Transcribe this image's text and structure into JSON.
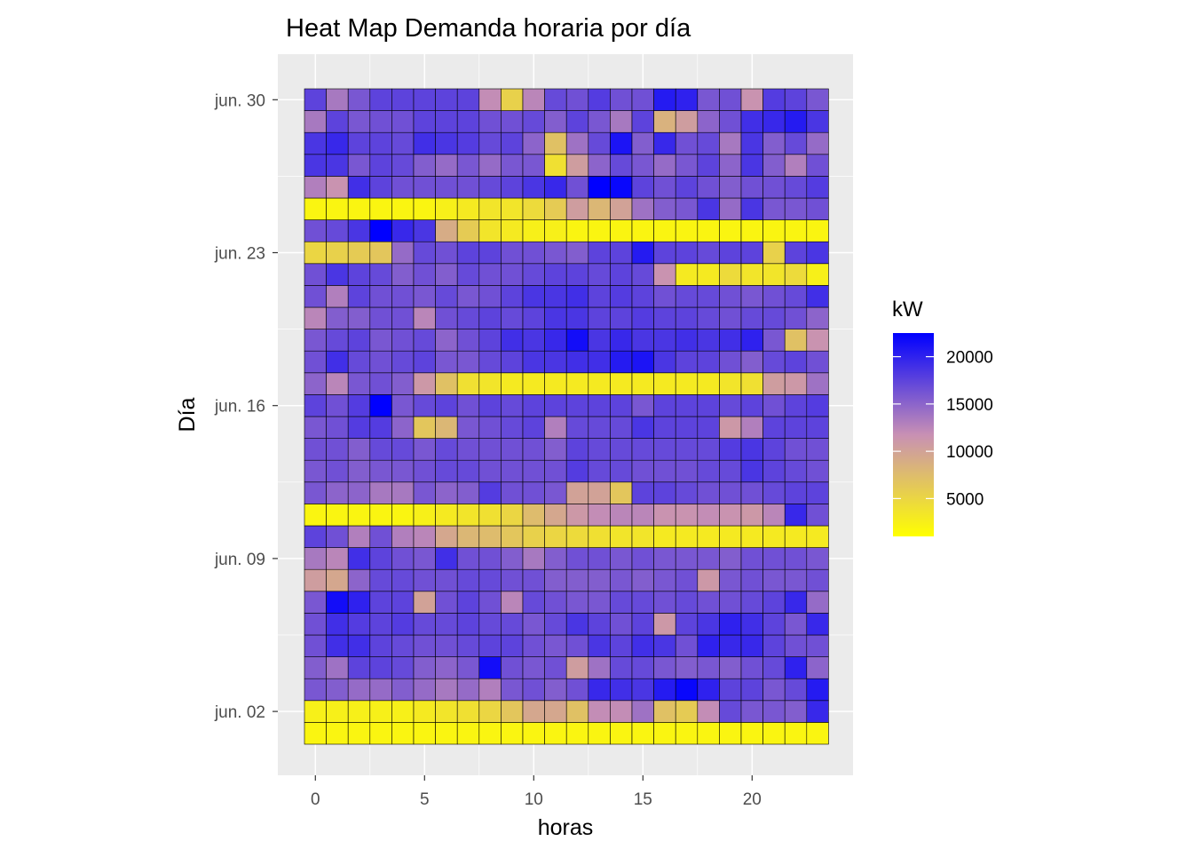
{
  "chart_data": {
    "type": "heatmap",
    "title": "Heat Map Demanda horaria por día",
    "xlabel": "horas",
    "ylabel": "Día",
    "x_ticks": [
      0,
      5,
      10,
      15,
      20
    ],
    "xlim": [
      -0.5,
      23.5
    ],
    "hours": [
      0,
      1,
      2,
      3,
      4,
      5,
      6,
      7,
      8,
      9,
      10,
      11,
      12,
      13,
      14,
      15,
      16,
      17,
      18,
      19,
      20,
      21,
      22,
      23
    ],
    "days": [
      "jun. 01",
      "jun. 02",
      "jun. 03",
      "jun. 04",
      "jun. 05",
      "jun. 06",
      "jun. 07",
      "jun. 08",
      "jun. 09",
      "jun. 10",
      "jun. 11",
      "jun. 12",
      "jun. 13",
      "jun. 14",
      "jun. 15",
      "jun. 16",
      "jun. 17",
      "jun. 18",
      "jun. 19",
      "jun. 20",
      "jun. 21",
      "jun. 22",
      "jun. 23",
      "jun. 24",
      "jun. 25",
      "jun. 26",
      "jun. 27",
      "jun. 28",
      "jun. 29",
      "jun. 30"
    ],
    "y_ticks": [
      "jun. 02",
      "jun. 09",
      "jun. 16",
      "jun. 23",
      "jun. 30"
    ],
    "grid": true,
    "legend": {
      "title": "kW",
      "position": "right",
      "breaks": [
        20000,
        15000,
        10000,
        5000
      ],
      "range": [
        1000,
        22500
      ],
      "colors": {
        "low": "#ffff00",
        "mid": "#c890b4",
        "high": "#0000ff"
      }
    },
    "values": [
      [
        2000,
        2000,
        2000,
        2000,
        2000,
        2000,
        2000,
        2000,
        2000,
        2000,
        2000,
        2000,
        2000,
        2000,
        2000,
        2000,
        2000,
        2000,
        2000,
        2000,
        2000,
        2000,
        2000,
        2000
      ],
      [
        2500,
        2500,
        2500,
        2500,
        2500,
        3000,
        3500,
        4000,
        5000,
        6500,
        9500,
        9500,
        7000,
        12000,
        12000,
        14000,
        7000,
        6000,
        12000,
        17000,
        16000,
        16000,
        15500,
        19500
      ],
      [
        16000,
        15500,
        14500,
        14500,
        15500,
        14500,
        13500,
        14500,
        13000,
        16000,
        16500,
        15500,
        16500,
        19500,
        19000,
        18500,
        20500,
        22000,
        20000,
        17500,
        17500,
        16000,
        17000,
        20500
      ],
      [
        15500,
        14000,
        17500,
        17500,
        17000,
        15500,
        15000,
        16000,
        21500,
        16500,
        16000,
        16500,
        10500,
        14000,
        17000,
        17000,
        16000,
        15500,
        16000,
        15500,
        16500,
        17000,
        20000,
        15000
      ],
      [
        16500,
        19000,
        19000,
        17500,
        17000,
        16500,
        16500,
        17000,
        17500,
        17500,
        16500,
        16000,
        16500,
        18500,
        17500,
        19000,
        18500,
        16500,
        20000,
        19500,
        19500,
        17500,
        16500,
        16500
      ],
      [
        16500,
        19000,
        18000,
        17500,
        18000,
        17000,
        17000,
        17500,
        17000,
        17000,
        16000,
        17000,
        18500,
        17500,
        16500,
        17500,
        11000,
        17500,
        18500,
        20000,
        19000,
        17500,
        16000,
        19500
      ],
      [
        16000,
        21500,
        20000,
        17500,
        17500,
        10000,
        16500,
        17500,
        16500,
        12500,
        17000,
        16500,
        16000,
        16000,
        17000,
        17000,
        16500,
        17000,
        16500,
        16500,
        17000,
        17500,
        19500,
        14500
      ],
      [
        10500,
        9500,
        15000,
        17000,
        17000,
        16500,
        16500,
        17000,
        17000,
        16500,
        16500,
        15500,
        15500,
        15500,
        16000,
        15500,
        16000,
        16500,
        11000,
        16000,
        16500,
        16000,
        16000,
        16500
      ],
      [
        13500,
        12500,
        19000,
        17500,
        16500,
        16000,
        19000,
        16500,
        16500,
        15500,
        13500,
        15500,
        16500,
        16500,
        16000,
        16500,
        16000,
        16000,
        16000,
        15500,
        16500,
        16500,
        16500,
        16000
      ],
      [
        17500,
        16500,
        13000,
        16500,
        13000,
        12500,
        9500,
        8000,
        7500,
        6500,
        5500,
        5000,
        4500,
        4000,
        3500,
        3500,
        3000,
        3000,
        3000,
        3000,
        3000,
        3000,
        3000,
        3000
      ],
      [
        2000,
        2000,
        2000,
        2000,
        2000,
        2500,
        3000,
        3500,
        4000,
        5000,
        7500,
        9500,
        11000,
        12000,
        12500,
        12500,
        11500,
        11500,
        12000,
        11500,
        11000,
        12500,
        19500,
        16500
      ],
      [
        16000,
        15000,
        15000,
        13500,
        13500,
        16000,
        15000,
        15500,
        18000,
        16500,
        16500,
        16000,
        10000,
        10000,
        6500,
        17500,
        17500,
        17000,
        16500,
        16500,
        16500,
        17000,
        17500,
        17500
      ],
      [
        16000,
        16500,
        15500,
        16000,
        16000,
        16500,
        17000,
        17000,
        16500,
        16500,
        16500,
        16500,
        18000,
        17000,
        17000,
        16500,
        16500,
        16500,
        17000,
        17000,
        18500,
        17500,
        17000,
        16500
      ],
      [
        16500,
        16500,
        15500,
        17000,
        17000,
        16000,
        17000,
        16500,
        16500,
        16500,
        16500,
        15500,
        17500,
        17000,
        17000,
        17000,
        17000,
        17000,
        17000,
        18000,
        18500,
        17500,
        16500,
        16500
      ],
      [
        16000,
        16500,
        18000,
        18000,
        15000,
        6500,
        8000,
        16000,
        16500,
        17000,
        17500,
        13000,
        17000,
        17000,
        17000,
        18500,
        17500,
        17500,
        17500,
        11000,
        13000,
        17500,
        17500,
        17500
      ],
      [
        17500,
        16500,
        18000,
        22500,
        16000,
        17000,
        17500,
        16500,
        17500,
        17000,
        17500,
        17500,
        17500,
        17500,
        17500,
        16000,
        17500,
        17500,
        17500,
        17000,
        17500,
        16500,
        17500,
        18000
      ],
      [
        15000,
        12500,
        16000,
        16500,
        15500,
        11000,
        7000,
        4000,
        3500,
        3000,
        3000,
        3000,
        3000,
        3000,
        3000,
        3000,
        3000,
        3000,
        3000,
        3500,
        4000,
        10500,
        11000,
        14000
      ],
      [
        16500,
        19000,
        17000,
        16500,
        17000,
        17500,
        16000,
        16000,
        17000,
        17500,
        18500,
        18500,
        19000,
        19000,
        20500,
        21000,
        18500,
        17500,
        17500,
        16500,
        15500,
        17000,
        17500,
        16500
      ],
      [
        16000,
        17000,
        17500,
        16000,
        16500,
        17000,
        15000,
        16500,
        17500,
        19000,
        18500,
        19500,
        21500,
        18500,
        19500,
        18500,
        18500,
        19000,
        18500,
        19000,
        20000,
        16000,
        7000,
        11500
      ],
      [
        12500,
        15500,
        15500,
        16500,
        16500,
        12500,
        16500,
        17000,
        17500,
        17000,
        17500,
        18500,
        18500,
        17500,
        17500,
        18000,
        17500,
        17500,
        17000,
        16500,
        17000,
        17000,
        16500,
        15000
      ],
      [
        16500,
        13000,
        17500,
        16500,
        16500,
        16000,
        17000,
        16000,
        16500,
        17500,
        18500,
        18500,
        19000,
        17500,
        18000,
        17500,
        16500,
        17000,
        17000,
        16500,
        16000,
        16500,
        17000,
        19000
      ],
      [
        16500,
        18500,
        17500,
        17000,
        15500,
        16500,
        15500,
        17000,
        16500,
        16500,
        17000,
        17500,
        17500,
        17000,
        17500,
        17000,
        11500,
        3000,
        3000,
        4500,
        3500,
        3500,
        4500,
        2500
      ],
      [
        5000,
        5500,
        6000,
        6500,
        14500,
        17000,
        16500,
        17500,
        17500,
        16500,
        16500,
        16000,
        15500,
        17500,
        17500,
        20500,
        17500,
        17500,
        17000,
        17500,
        17500,
        5500,
        17500,
        18500
      ],
      [
        16500,
        17000,
        18500,
        22500,
        19500,
        18500,
        9000,
        6000,
        3500,
        3000,
        2500,
        2500,
        2000,
        2000,
        2000,
        2000,
        2000,
        2000,
        2000,
        2000,
        2000,
        2000,
        2000,
        2000
      ],
      [
        2000,
        2000,
        2000,
        2000,
        2000,
        2000,
        2500,
        3000,
        3500,
        3500,
        4500,
        6000,
        10500,
        8000,
        10000,
        14000,
        15500,
        16000,
        18500,
        14500,
        18500,
        16000,
        16000,
        16500
      ],
      [
        13000,
        11500,
        19000,
        17500,
        16500,
        16500,
        16500,
        16500,
        17000,
        17500,
        18500,
        19500,
        16500,
        22500,
        22000,
        17500,
        16500,
        17500,
        16500,
        15500,
        16500,
        16500,
        17000,
        18000
      ],
      [
        18500,
        18500,
        16000,
        17500,
        17000,
        15500,
        14500,
        16000,
        14500,
        16000,
        16000,
        4000,
        10500,
        15000,
        17000,
        16000,
        14500,
        16000,
        17500,
        15000,
        18500,
        15500,
        13000,
        16500
      ],
      [
        18500,
        19500,
        17500,
        17500,
        17000,
        19000,
        18500,
        18000,
        17000,
        17500,
        15000,
        7000,
        14000,
        17000,
        21000,
        15500,
        19500,
        16500,
        17000,
        13500,
        18500,
        15500,
        17000,
        14500
      ],
      [
        13500,
        17500,
        16000,
        16500,
        16500,
        17500,
        17500,
        17500,
        16500,
        16500,
        17000,
        15500,
        17500,
        16000,
        13500,
        17500,
        8500,
        10500,
        15000,
        16500,
        19000,
        19500,
        20500,
        18500
      ],
      [
        17500,
        13500,
        16000,
        17500,
        17500,
        17500,
        17500,
        17500,
        12000,
        5500,
        12500,
        17000,
        16500,
        18000,
        16500,
        16500,
        20500,
        20000,
        16000,
        16500,
        11500,
        18000,
        17500,
        16000
      ]
    ]
  }
}
